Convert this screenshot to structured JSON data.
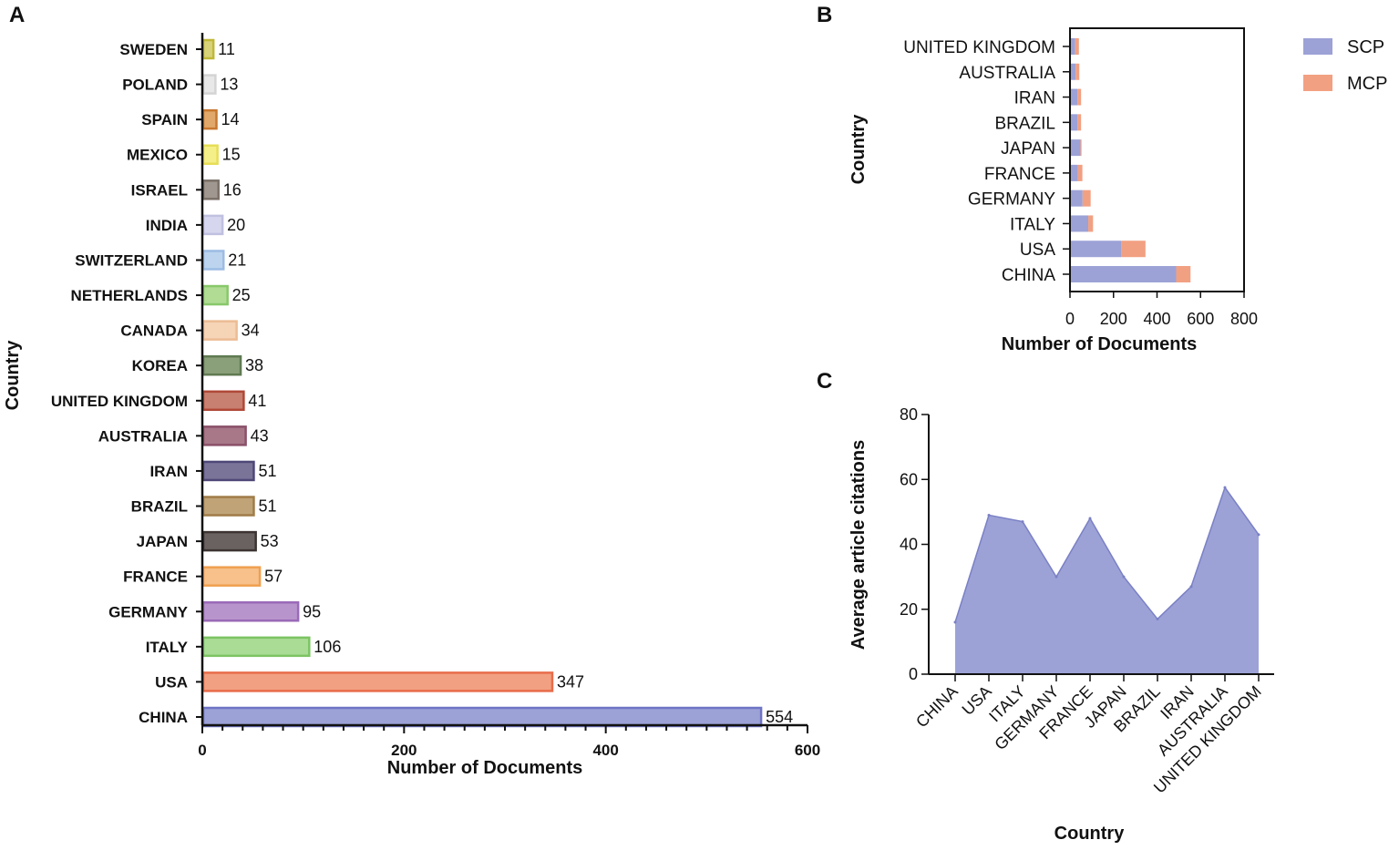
{
  "panels": {
    "a": "A",
    "b": "B",
    "c": "C"
  },
  "chart_data": [
    {
      "id": "A",
      "type": "bar",
      "orientation": "horizontal",
      "title": "",
      "xlabel": "Number of Documents",
      "ylabel": "Country",
      "xlim": [
        0,
        600
      ],
      "xticks": [
        0,
        200,
        400,
        600
      ],
      "categories": [
        "SWEDEN",
        "POLAND",
        "SPAIN",
        "MEXICO",
        "ISRAEL",
        "INDIA",
        "SWITZERLAND",
        "NETHERLANDS",
        "CANADA",
        "KOREA",
        "UNITED KINGDOM",
        "AUSTRALIA",
        "IRAN",
        "BRAZIL",
        "JAPAN",
        "FRANCE",
        "GERMANY",
        "ITALY",
        "USA",
        "CHINA"
      ],
      "values": [
        11,
        13,
        14,
        15,
        16,
        20,
        21,
        25,
        34,
        38,
        41,
        43,
        51,
        51,
        53,
        57,
        95,
        106,
        347,
        554
      ],
      "colors": [
        "#d8d27a",
        "#e8e8e8",
        "#e0a86a",
        "#f5ef8a",
        "#a09890",
        "#d6d6ee",
        "#bcd4ee",
        "#b0dc94",
        "#f6d4b6",
        "#8aa07a",
        "#c88070",
        "#a87888",
        "#7a7498",
        "#c0a478",
        "#6a6260",
        "#f8c08a",
        "#b894cc",
        "#aadc96",
        "#f2a082",
        "#9ca2d6"
      ],
      "edge_colors": [
        "#c0b838",
        "#d4d4d4",
        "#c87830",
        "#e6de56",
        "#7a7068",
        "#c0c0e0",
        "#9cbce4",
        "#88c86a",
        "#ecbc94",
        "#607a52",
        "#b04838",
        "#8a5068",
        "#4e4878",
        "#a07c48",
        "#3c3432",
        "#f0a050",
        "#9a6ab8",
        "#7cc462",
        "#e86c4a",
        "#6e74c4"
      ]
    },
    {
      "id": "B",
      "type": "bar",
      "orientation": "horizontal",
      "stacked": true,
      "xlabel": "Number of Documents",
      "ylabel": "Country",
      "xlim": [
        0,
        800
      ],
      "xticks": [
        0,
        200,
        400,
        600,
        800
      ],
      "categories": [
        "UNITED KINGDOM",
        "AUSTRALIA",
        "IRAN",
        "BRAZIL",
        "JAPAN",
        "FRANCE",
        "GERMANY",
        "ITALY",
        "USA",
        "CHINA"
      ],
      "series": [
        {
          "name": "SCP",
          "color": "#9ca2d6",
          "values": [
            24,
            26,
            34,
            34,
            48,
            36,
            58,
            84,
            236,
            488
          ]
        },
        {
          "name": "MCP",
          "color": "#f2a082",
          "values": [
            17,
            17,
            17,
            17,
            5,
            21,
            37,
            22,
            111,
            66
          ]
        }
      ],
      "legend": "top-right"
    },
    {
      "id": "C",
      "type": "area",
      "xlabel": "Country",
      "ylabel": "Average article citations",
      "ylim": [
        0,
        80
      ],
      "yticks": [
        0,
        20,
        40,
        60,
        80
      ],
      "categories": [
        "CHINA",
        "USA",
        "ITALY",
        "GERMANY",
        "FRANCE",
        "JAPAN",
        "BRAZIL",
        "IRAN",
        "AUSTRALIA",
        "UNITED KINGDOM"
      ],
      "values": [
        16,
        49,
        47,
        30,
        48,
        30,
        17,
        27,
        57.5,
        43
      ],
      "color": "#9ca2d6",
      "edge_color": "#7a80c4"
    }
  ]
}
